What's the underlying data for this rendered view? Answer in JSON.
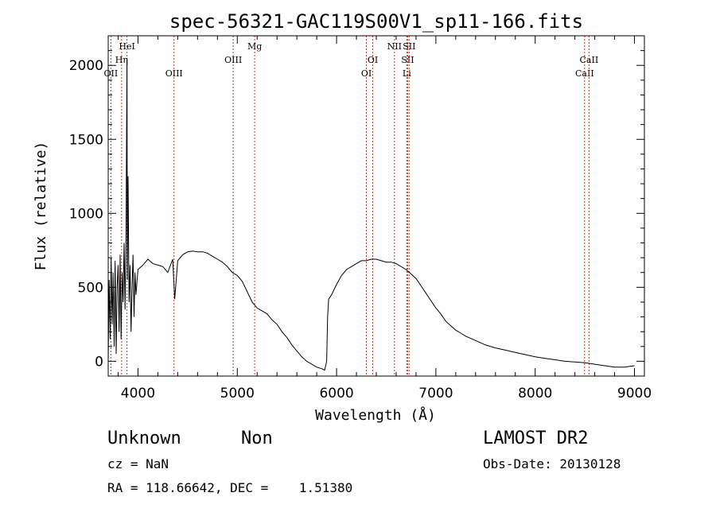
{
  "chart_data": {
    "type": "line",
    "title": "spec-56321-GAC119S00V1_sp11-166.fits",
    "xlabel": "Wavelength (Å)",
    "ylabel": "Flux (relative)",
    "xlim": [
      3700,
      9100
    ],
    "ylim": [
      -100,
      2200
    ],
    "x_ticks": [
      4000,
      5000,
      6000,
      7000,
      8000,
      9000
    ],
    "y_ticks": [
      0,
      500,
      1000,
      1500,
      2000
    ],
    "grid": false,
    "series": [
      {
        "line_color": "#000000",
        "x": [
          3700,
          3710,
          3720,
          3730,
          3740,
          3750,
          3760,
          3770,
          3780,
          3790,
          3800,
          3810,
          3820,
          3830,
          3840,
          3850,
          3860,
          3870,
          3880,
          3889,
          3893,
          3900,
          3910,
          3920,
          3930,
          3940,
          3950,
          3960,
          3970,
          3980,
          4000,
          4050,
          4100,
          4150,
          4200,
          4250,
          4300,
          4350,
          4370,
          4400,
          4450,
          4500,
          4550,
          4600,
          4650,
          4700,
          4750,
          4800,
          4850,
          4900,
          4950,
          5000,
          5050,
          5100,
          5150,
          5200,
          5250,
          5300,
          5350,
          5400,
          5450,
          5500,
          5550,
          5600,
          5650,
          5700,
          5750,
          5800,
          5850,
          5880,
          5900,
          5910,
          5920,
          5950,
          6000,
          6050,
          6100,
          6150,
          6200,
          6250,
          6300,
          6350,
          6400,
          6450,
          6500,
          6550,
          6600,
          6650,
          6700,
          6750,
          6800,
          6850,
          6900,
          6950,
          7000,
          7050,
          7100,
          7150,
          7200,
          7250,
          7300,
          7400,
          7500,
          7600,
          7700,
          7800,
          7900,
          8000,
          8100,
          8200,
          8300,
          8400,
          8500,
          8600,
          8700,
          8800,
          8900,
          9000
        ],
        "y": [
          0,
          550,
          150,
          700,
          250,
          600,
          100,
          680,
          50,
          500,
          650,
          200,
          720,
          150,
          600,
          400,
          800,
          350,
          900,
          2050,
          550,
          1250,
          400,
          650,
          200,
          500,
          720,
          300,
          600,
          450,
          620,
          650,
          690,
          660,
          650,
          640,
          600,
          690,
          420,
          680,
          720,
          740,
          745,
          740,
          740,
          730,
          710,
          690,
          670,
          640,
          600,
          580,
          540,
          470,
          400,
          360,
          340,
          320,
          280,
          250,
          200,
          160,
          110,
          70,
          30,
          0,
          -20,
          -40,
          -50,
          -60,
          0,
          300,
          420,
          450,
          520,
          580,
          620,
          640,
          660,
          680,
          680,
          690,
          690,
          680,
          670,
          670,
          660,
          640,
          620,
          590,
          560,
          510,
          460,
          410,
          360,
          320,
          270,
          240,
          210,
          190,
          170,
          140,
          110,
          90,
          75,
          60,
          45,
          30,
          20,
          10,
          0,
          -5,
          -10,
          -20,
          -30,
          -40,
          -40,
          -30
        ]
      }
    ],
    "lines": [
      {
        "x": 3727,
        "label": "OII"
      },
      {
        "x": 3835,
        "label": "Hη"
      },
      {
        "x": 3889,
        "label": "HeI"
      },
      {
        "x": 4363,
        "label": "OIII"
      },
      {
        "x": 4959,
        "label": "OIII"
      },
      {
        "x": 5175,
        "label": "Mg"
      },
      {
        "x": 6300,
        "label": "OI"
      },
      {
        "x": 6364,
        "label": "OI"
      },
      {
        "x": 6583,
        "label": "NII"
      },
      {
        "x": 6707,
        "label": "Li"
      },
      {
        "x": 6716,
        "label": "SII"
      },
      {
        "x": 6731,
        "label": "SII"
      },
      {
        "x": 8498,
        "label": "CaII"
      },
      {
        "x": 8542,
        "label": "CaII"
      }
    ]
  },
  "info": {
    "class_label": "Unknown",
    "subclass_label": "Non",
    "survey": "LAMOST DR2",
    "cz": "cz = NaN",
    "obs_date": "Obs-Date: 20130128",
    "coords": "RA = 118.66642, DEC =    1.51380"
  }
}
